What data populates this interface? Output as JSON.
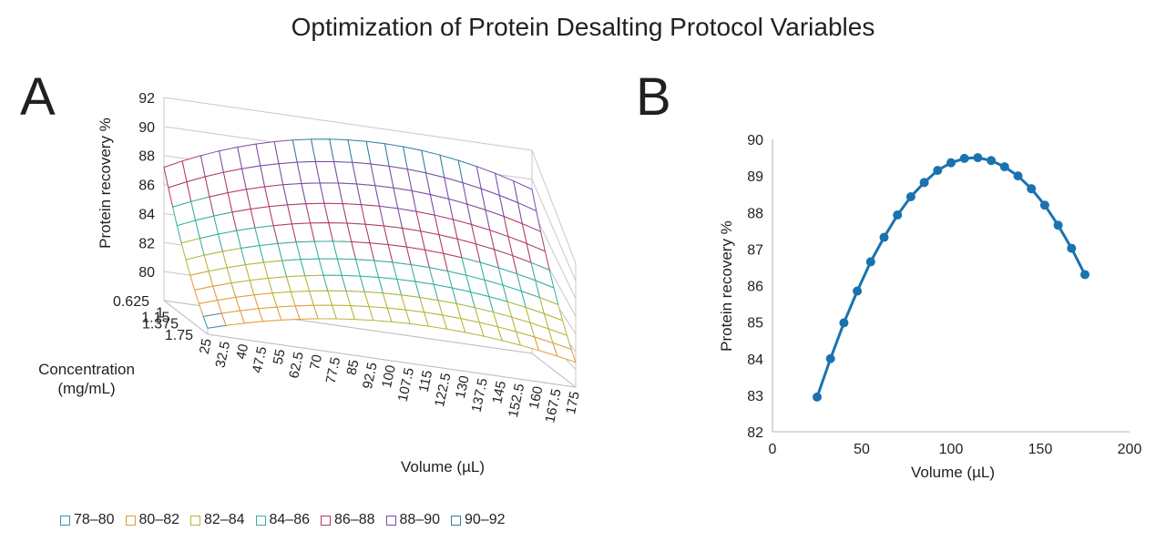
{
  "title": "Optimization of Protein Desalting Protocol Variables",
  "panel_a_label": "A",
  "panel_b_label": "B",
  "chart_data": [
    {
      "panel": "A",
      "type": "surface",
      "zlabel": "Protein recovery %",
      "xlabel": "Volume (µL)",
      "ylabel_line1": "Concentration",
      "ylabel_line2": "(mg/mL)",
      "z_ticks": [
        "80",
        "82",
        "84",
        "86",
        "88",
        "90",
        "92"
      ],
      "z_tick_values": [
        80,
        82,
        84,
        86,
        88,
        90,
        92
      ],
      "x_ticks": [
        "25",
        "32.5",
        "40",
        "47.5",
        "55",
        "62.5",
        "70",
        "77.5",
        "85",
        "92.5",
        "100",
        "107.5",
        "115",
        "122.5",
        "130",
        "137.5",
        "145",
        "152.5",
        "160",
        "167.5",
        "175"
      ],
      "x_tick_values": [
        25,
        32.5,
        40,
        47.5,
        55,
        62.5,
        70,
        77.5,
        85,
        92.5,
        100,
        107.5,
        115,
        122.5,
        130,
        137.5,
        145,
        152.5,
        160,
        167.5,
        175
      ],
      "y_ticks": [
        "0.625",
        "1",
        "1.15",
        "1.375",
        "1.75"
      ],
      "y_tick_values": [
        0.625,
        1,
        1.15,
        1.375,
        1.75
      ],
      "zlim": [
        78,
        92
      ],
      "volume_range": [
        25,
        175
      ],
      "concentration_range": [
        0.625,
        1.75
      ],
      "legend": [
        {
          "label": "78–80",
          "color": "#3a8fb7"
        },
        {
          "label": "80–82",
          "color": "#e39b3a"
        },
        {
          "label": "82–84",
          "color": "#b7b43a"
        },
        {
          "label": "84–86",
          "color": "#35b0a0"
        },
        {
          "label": "86–88",
          "color": "#b03a64"
        },
        {
          "label": "88–90",
          "color": "#7b4aa6"
        },
        {
          "label": "90–92",
          "color": "#2f7fa3"
        }
      ]
    },
    {
      "panel": "B",
      "type": "line",
      "xlabel": "Volume (µL)",
      "ylabel": "Protein recovery %",
      "xlim": [
        0,
        200
      ],
      "ylim": [
        82,
        90
      ],
      "x_ticks": [
        "0",
        "50",
        "100",
        "150",
        "200"
      ],
      "x_tick_values": [
        0,
        50,
        100,
        150,
        200
      ],
      "y_ticks": [
        "82",
        "83",
        "84",
        "85",
        "86",
        "87",
        "88",
        "89",
        "90"
      ],
      "y_tick_values": [
        82,
        83,
        84,
        85,
        86,
        87,
        88,
        89,
        90
      ],
      "color": "#1a73b0",
      "x": [
        25,
        32.5,
        40,
        47.5,
        55,
        62.5,
        70,
        77.5,
        85,
        92.5,
        100,
        107.5,
        115,
        122.5,
        130,
        137.5,
        145,
        152.5,
        160,
        167.5,
        175
      ],
      "y": [
        82.95,
        84.0,
        84.98,
        85.85,
        86.65,
        87.32,
        87.93,
        88.43,
        88.82,
        89.15,
        89.36,
        89.48,
        89.5,
        89.42,
        89.25,
        89.0,
        88.65,
        88.2,
        87.65,
        87.02,
        86.3
      ]
    }
  ]
}
